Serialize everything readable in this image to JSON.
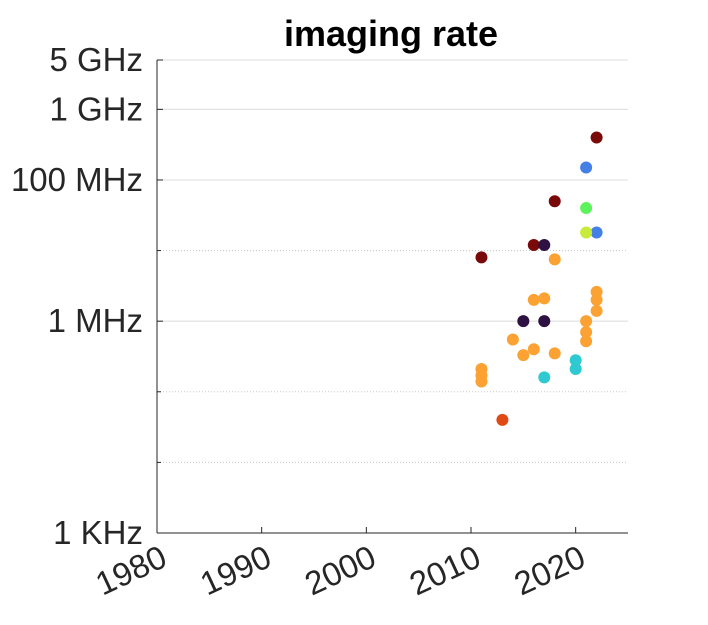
{
  "chart_data": {
    "type": "scatter",
    "title": "imaging rate",
    "xlabel": "",
    "ylabel": "",
    "xlim": [
      1980,
      2025
    ],
    "ylim_hz": [
      1000,
      5000000000
    ],
    "yscale": "log",
    "grid": true,
    "x_ticks": [
      {
        "value": 1980,
        "label": "1980"
      },
      {
        "value": 1990,
        "label": "1990"
      },
      {
        "value": 2000,
        "label": "2000"
      },
      {
        "value": 2010,
        "label": "2010"
      },
      {
        "value": 2020,
        "label": "2020"
      }
    ],
    "y_ticks": [
      {
        "value": 1000,
        "label": "1 KHz"
      },
      {
        "value": 1000000,
        "label": "1 MHz"
      },
      {
        "value": 100000000,
        "label": "100 MHz"
      },
      {
        "value": 1000000000,
        "label": "1 GHz"
      },
      {
        "value": 5000000000,
        "label": "5 GHz"
      }
    ],
    "minor_grid_y": [
      10000,
      100000,
      10000000
    ],
    "points": [
      {
        "x": 2011,
        "y": 8000000,
        "color": "#7a0a0a"
      },
      {
        "x": 2022,
        "y": 400000000,
        "color": "#7a0a0a"
      },
      {
        "x": 2018,
        "y": 50000000,
        "color": "#7a0a0a"
      },
      {
        "x": 2016,
        "y": 12000000,
        "color": "#7a0a0a"
      },
      {
        "x": 2017,
        "y": 12000000,
        "color": "#2e1243"
      },
      {
        "x": 2015,
        "y": 1000000,
        "color": "#2e1243"
      },
      {
        "x": 2017,
        "y": 1000000,
        "color": "#2e1243"
      },
      {
        "x": 2021,
        "y": 150000000,
        "color": "#4480e6"
      },
      {
        "x": 2022,
        "y": 18000000,
        "color": "#4480e6"
      },
      {
        "x": 2021,
        "y": 40000000,
        "color": "#5cf25c"
      },
      {
        "x": 2021,
        "y": 18000000,
        "color": "#c8ea3a"
      },
      {
        "x": 2011,
        "y": 210000,
        "color": "#fba232"
      },
      {
        "x": 2011,
        "y": 170000,
        "color": "#fba232"
      },
      {
        "x": 2011,
        "y": 140000,
        "color": "#fba232"
      },
      {
        "x": 2014,
        "y": 550000,
        "color": "#fba232"
      },
      {
        "x": 2015,
        "y": 330000,
        "color": "#fba232"
      },
      {
        "x": 2016,
        "y": 400000,
        "color": "#fba232"
      },
      {
        "x": 2016,
        "y": 2000000,
        "color": "#fba232"
      },
      {
        "x": 2017,
        "y": 2100000,
        "color": "#fba232"
      },
      {
        "x": 2018,
        "y": 7500000,
        "color": "#fba232"
      },
      {
        "x": 2018,
        "y": 350000,
        "color": "#fba232"
      },
      {
        "x": 2021,
        "y": 1000000,
        "color": "#fba232"
      },
      {
        "x": 2021,
        "y": 700000,
        "color": "#fba232"
      },
      {
        "x": 2021,
        "y": 520000,
        "color": "#fba232"
      },
      {
        "x": 2022,
        "y": 2600000,
        "color": "#fba232"
      },
      {
        "x": 2022,
        "y": 2000000,
        "color": "#fba232"
      },
      {
        "x": 2022,
        "y": 1400000,
        "color": "#fba232"
      },
      {
        "x": 2017,
        "y": 160000,
        "color": "#2ec9d1"
      },
      {
        "x": 2020,
        "y": 280000,
        "color": "#2ec9d1"
      },
      {
        "x": 2020,
        "y": 210000,
        "color": "#2ec9d1"
      },
      {
        "x": 2013,
        "y": 40000,
        "color": "#e04a17"
      }
    ]
  }
}
